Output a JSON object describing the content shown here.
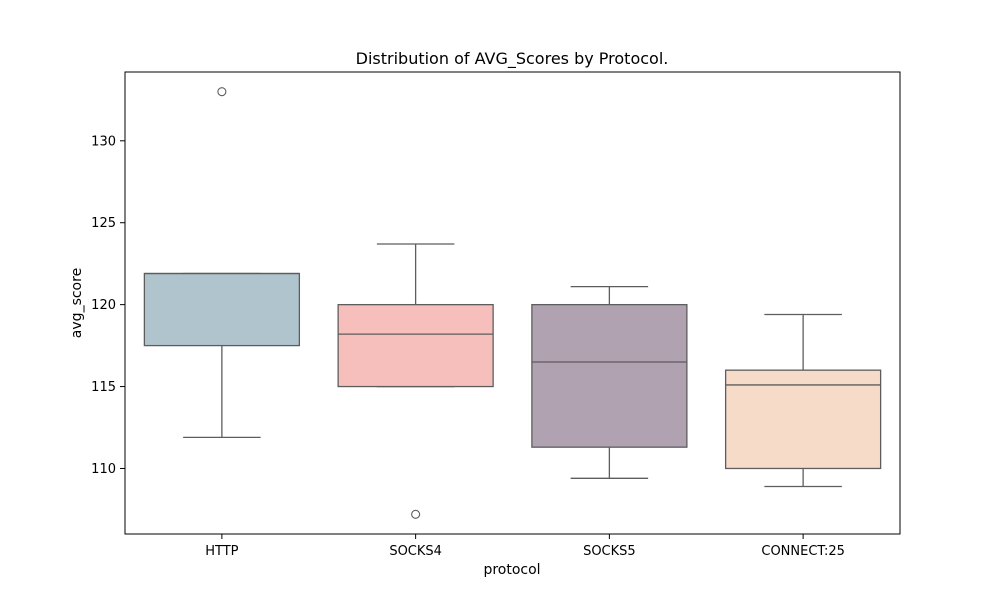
{
  "chart_data": {
    "type": "box",
    "title": "Distribution of AVG_Scores by Protocol.",
    "xlabel": "protocol",
    "ylabel": "avg_score",
    "ylim": [
      106,
      134.2
    ],
    "yticks": [
      110,
      115,
      120,
      125,
      130
    ],
    "grid": false,
    "legend": "none",
    "categories": [
      "HTTP",
      "SOCKS4",
      "SOCKS5",
      "CONNECT:25"
    ],
    "boxes": [
      {
        "category": "HTTP",
        "whisker_low": 111.9,
        "q1": 117.5,
        "median": 121.9,
        "q3": 121.9,
        "whisker_high": 121.9,
        "outliers": [
          133.0
        ],
        "color": "#b0c4cd"
      },
      {
        "category": "SOCKS4",
        "whisker_low": 115.0,
        "q1": 115.0,
        "median": 118.2,
        "q3": 120.0,
        "whisker_high": 123.7,
        "outliers": [
          107.2
        ],
        "color": "#f6bfbc"
      },
      {
        "category": "SOCKS5",
        "whisker_low": 109.4,
        "q1": 111.3,
        "median": 116.5,
        "q3": 120.0,
        "whisker_high": 121.1,
        "outliers": [],
        "color": "#b1a2b2"
      },
      {
        "category": "CONNECT:25",
        "whisker_low": 108.9,
        "q1": 110.0,
        "median": 115.1,
        "q3": 116.0,
        "whisker_high": 119.4,
        "outliers": [],
        "color": "#f6dbc9"
      }
    ],
    "line_color": "#5d5d5d"
  }
}
